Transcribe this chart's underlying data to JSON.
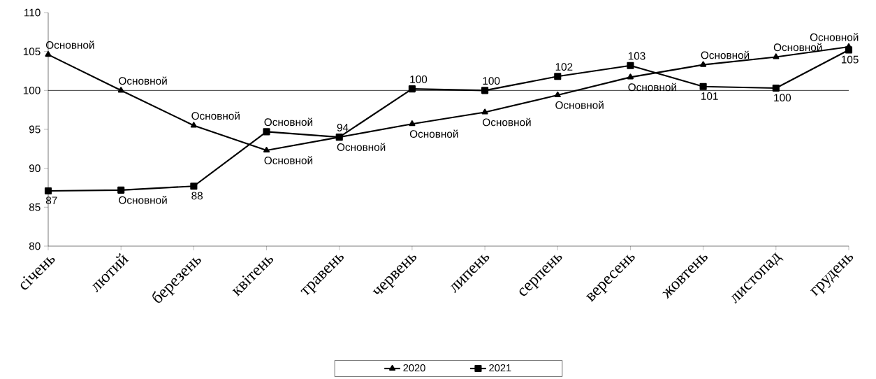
{
  "chart_data": {
    "type": "line",
    "categories": [
      "січень",
      "лютий",
      "березень",
      "квітень",
      "травень",
      "червень",
      "липень",
      "серпень",
      "вересень",
      "жовтень",
      "листопад",
      "грудень"
    ],
    "series": [
      {
        "name": "2020",
        "color": "#000000",
        "marker": "triangle",
        "values": [
          104.6,
          100.0,
          95.5,
          92.3,
          94.0,
          95.7,
          97.2,
          99.4,
          101.7,
          103.3,
          104.3,
          105.6
        ],
        "value_labels": [
          "Основной",
          "Основной",
          "Основной",
          "Основной",
          "Основной",
          "Основной",
          "Основной",
          "Основной",
          "Основной",
          "Основной",
          "Основной",
          "Основной"
        ]
      },
      {
        "name": "2021",
        "color": "#000000",
        "marker": "square",
        "values": [
          87.1,
          87.2,
          87.7,
          94.7,
          94.0,
          100.2,
          100.0,
          101.8,
          103.2,
          100.5,
          100.3,
          105.2
        ],
        "value_labels": [
          "87",
          "Основной",
          "88",
          "Основной",
          "94",
          "100",
          "100",
          "102",
          "103",
          "101",
          "100",
          "105"
        ]
      }
    ],
    "ylim": [
      80,
      110
    ],
    "yticks": [
      80,
      85,
      90,
      95,
      100,
      105,
      110
    ],
    "ref_lines": [
      {
        "axis": "y",
        "value": 100,
        "color": "#000000"
      }
    ],
    "line_style": "solid",
    "legend": "bottom"
  }
}
